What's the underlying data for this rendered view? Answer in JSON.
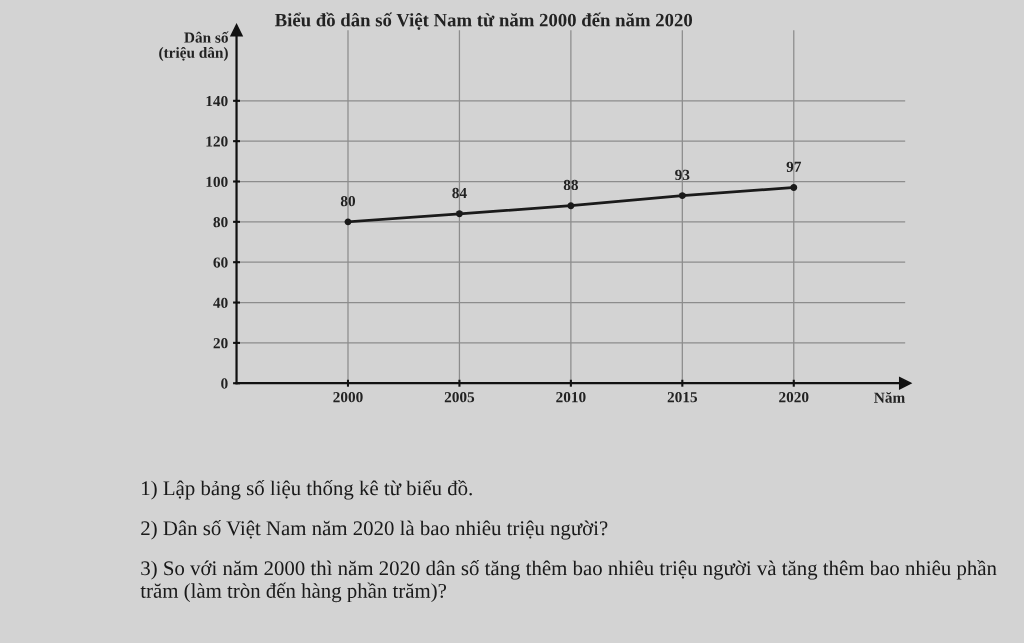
{
  "chart_data": {
    "type": "line",
    "title": "Biểu đồ dân số Việt Nam từ năm 2000 đến năm 2020",
    "xlabel": "Năm",
    "ylabel": "Dân số\n(triệu dân)",
    "categories": [
      "2000",
      "2005",
      "2010",
      "2015",
      "2020"
    ],
    "series": [
      {
        "color": "#1a1a1a",
        "values": [
          80,
          84,
          88,
          93,
          97
        ]
      }
    ],
    "ylim": [
      0,
      175
    ],
    "yticks": [
      0,
      20,
      40,
      60,
      80,
      100,
      120,
      140
    ],
    "grid": true,
    "marker": "circle",
    "line_style": "solid",
    "data_labels": true,
    "annotations": [
      "1) Lập bảng số liệu thống kê từ biểu đồ.",
      "2) Dân số Việt Nam năm 2020 là bao nhiêu triệu người?",
      "3) So với năm 2000 thì năm 2020 dân số tăng thêm bao nhiêu triệu người và tăng thêm bao nhiêu phần trăm (làm tròn đến hàng phần trăm)?"
    ]
  }
}
